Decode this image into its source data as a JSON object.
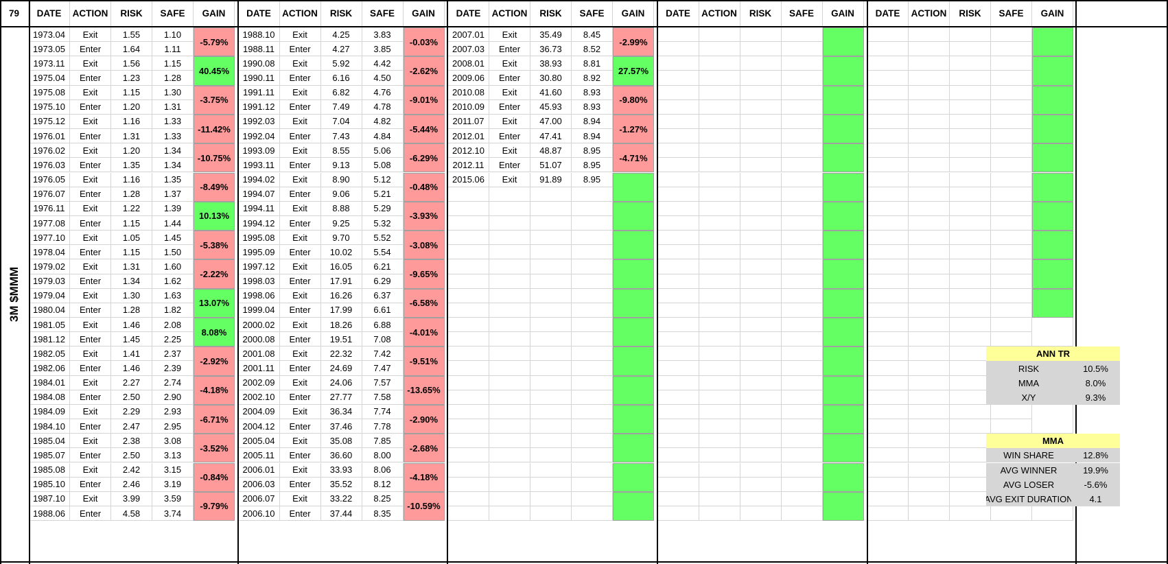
{
  "corner": "79",
  "side_label": "3M $MMM",
  "headers": [
    "DATE",
    "ACTION",
    "RISK",
    "SAFE",
    "GAIN"
  ],
  "blocks": [
    {
      "rows": [
        [
          "1973.04",
          "Exit",
          "1.55",
          "1.10"
        ],
        [
          "1973.05",
          "Enter",
          "1.64",
          "1.11"
        ],
        [
          "1973.11",
          "Exit",
          "1.56",
          "1.15"
        ],
        [
          "1975.04",
          "Enter",
          "1.23",
          "1.28"
        ],
        [
          "1975.08",
          "Exit",
          "1.15",
          "1.30"
        ],
        [
          "1975.10",
          "Enter",
          "1.20",
          "1.31"
        ],
        [
          "1975.12",
          "Exit",
          "1.16",
          "1.33"
        ],
        [
          "1976.01",
          "Enter",
          "1.31",
          "1.33"
        ],
        [
          "1976.02",
          "Exit",
          "1.20",
          "1.34"
        ],
        [
          "1976.03",
          "Enter",
          "1.35",
          "1.34"
        ],
        [
          "1976.05",
          "Exit",
          "1.16",
          "1.35"
        ],
        [
          "1976.07",
          "Enter",
          "1.28",
          "1.37"
        ],
        [
          "1976.11",
          "Exit",
          "1.22",
          "1.39"
        ],
        [
          "1977.08",
          "Enter",
          "1.15",
          "1.44"
        ],
        [
          "1977.10",
          "Exit",
          "1.05",
          "1.45"
        ],
        [
          "1978.04",
          "Enter",
          "1.15",
          "1.50"
        ],
        [
          "1979.02",
          "Exit",
          "1.31",
          "1.60"
        ],
        [
          "1979.03",
          "Enter",
          "1.34",
          "1.62"
        ],
        [
          "1979.04",
          "Exit",
          "1.30",
          "1.63"
        ],
        [
          "1980.04",
          "Enter",
          "1.28",
          "1.82"
        ],
        [
          "1981.05",
          "Exit",
          "1.46",
          "2.08"
        ],
        [
          "1981.12",
          "Enter",
          "1.45",
          "2.25"
        ],
        [
          "1982.05",
          "Exit",
          "1.41",
          "2.37"
        ],
        [
          "1982.06",
          "Enter",
          "1.46",
          "2.39"
        ],
        [
          "1984.01",
          "Exit",
          "2.27",
          "2.74"
        ],
        [
          "1984.08",
          "Enter",
          "2.50",
          "2.90"
        ],
        [
          "1984.09",
          "Exit",
          "2.29",
          "2.93"
        ],
        [
          "1984.10",
          "Enter",
          "2.47",
          "2.95"
        ],
        [
          "1985.04",
          "Exit",
          "2.38",
          "3.08"
        ],
        [
          "1985.07",
          "Enter",
          "2.50",
          "3.13"
        ],
        [
          "1985.08",
          "Exit",
          "2.42",
          "3.15"
        ],
        [
          "1985.10",
          "Enter",
          "2.46",
          "3.19"
        ],
        [
          "1987.10",
          "Exit",
          "3.99",
          "3.59"
        ],
        [
          "1988.06",
          "Enter",
          "4.58",
          "3.74"
        ]
      ],
      "gains": [
        {
          "text": "-5.79%",
          "tone": "neg"
        },
        {
          "text": "40.45%",
          "tone": "pos"
        },
        {
          "text": "-3.75%",
          "tone": "neg"
        },
        {
          "text": "-11.42%",
          "tone": "neg"
        },
        {
          "text": "-10.75%",
          "tone": "neg"
        },
        {
          "text": "-8.49%",
          "tone": "neg"
        },
        {
          "text": "10.13%",
          "tone": "pos"
        },
        {
          "text": "-5.38%",
          "tone": "neg"
        },
        {
          "text": "-2.22%",
          "tone": "neg"
        },
        {
          "text": "13.07%",
          "tone": "pos"
        },
        {
          "text": "8.08%",
          "tone": "pos"
        },
        {
          "text": "-2.92%",
          "tone": "neg"
        },
        {
          "text": "-4.18%",
          "tone": "neg"
        },
        {
          "text": "-6.71%",
          "tone": "neg"
        },
        {
          "text": "-3.52%",
          "tone": "neg"
        },
        {
          "text": "-0.84%",
          "tone": "neg"
        },
        {
          "text": "-9.79%",
          "tone": "neg"
        }
      ]
    },
    {
      "rows": [
        [
          "1988.10",
          "Exit",
          "4.25",
          "3.83"
        ],
        [
          "1988.11",
          "Enter",
          "4.27",
          "3.85"
        ],
        [
          "1990.08",
          "Exit",
          "5.92",
          "4.42"
        ],
        [
          "1990.11",
          "Enter",
          "6.16",
          "4.50"
        ],
        [
          "1991.11",
          "Exit",
          "6.82",
          "4.76"
        ],
        [
          "1991.12",
          "Enter",
          "7.49",
          "4.78"
        ],
        [
          "1992.03",
          "Exit",
          "7.04",
          "4.82"
        ],
        [
          "1992.04",
          "Enter",
          "7.43",
          "4.84"
        ],
        [
          "1993.09",
          "Exit",
          "8.55",
          "5.06"
        ],
        [
          "1993.11",
          "Enter",
          "9.13",
          "5.08"
        ],
        [
          "1994.02",
          "Exit",
          "8.90",
          "5.12"
        ],
        [
          "1994.07",
          "Enter",
          "9.06",
          "5.21"
        ],
        [
          "1994.11",
          "Exit",
          "8.88",
          "5.29"
        ],
        [
          "1994.12",
          "Enter",
          "9.25",
          "5.32"
        ],
        [
          "1995.08",
          "Exit",
          "9.70",
          "5.52"
        ],
        [
          "1995.09",
          "Enter",
          "10.02",
          "5.54"
        ],
        [
          "1997.12",
          "Exit",
          "16.05",
          "6.21"
        ],
        [
          "1998.03",
          "Enter",
          "17.91",
          "6.29"
        ],
        [
          "1998.06",
          "Exit",
          "16.26",
          "6.37"
        ],
        [
          "1999.04",
          "Enter",
          "17.99",
          "6.61"
        ],
        [
          "2000.02",
          "Exit",
          "18.26",
          "6.88"
        ],
        [
          "2000.08",
          "Enter",
          "19.51",
          "7.08"
        ],
        [
          "2001.08",
          "Exit",
          "22.32",
          "7.42"
        ],
        [
          "2001.11",
          "Enter",
          "24.69",
          "7.47"
        ],
        [
          "2002.09",
          "Exit",
          "24.06",
          "7.57"
        ],
        [
          "2002.10",
          "Enter",
          "27.77",
          "7.58"
        ],
        [
          "2004.09",
          "Exit",
          "36.34",
          "7.74"
        ],
        [
          "2004.12",
          "Enter",
          "37.46",
          "7.78"
        ],
        [
          "2005.04",
          "Exit",
          "35.08",
          "7.85"
        ],
        [
          "2005.11",
          "Enter",
          "36.60",
          "8.00"
        ],
        [
          "2006.01",
          "Exit",
          "33.93",
          "8.06"
        ],
        [
          "2006.03",
          "Enter",
          "35.52",
          "8.12"
        ],
        [
          "2006.07",
          "Exit",
          "33.22",
          "8.25"
        ],
        [
          "2006.10",
          "Enter",
          "37.44",
          "8.35"
        ]
      ],
      "gains": [
        {
          "text": "-0.03%",
          "tone": "neg"
        },
        {
          "text": "-2.62%",
          "tone": "neg"
        },
        {
          "text": "-9.01%",
          "tone": "neg"
        },
        {
          "text": "-5.44%",
          "tone": "neg"
        },
        {
          "text": "-6.29%",
          "tone": "neg"
        },
        {
          "text": "-0.48%",
          "tone": "neg"
        },
        {
          "text": "-3.93%",
          "tone": "neg"
        },
        {
          "text": "-3.08%",
          "tone": "neg"
        },
        {
          "text": "-9.65%",
          "tone": "neg"
        },
        {
          "text": "-6.58%",
          "tone": "neg"
        },
        {
          "text": "-4.01%",
          "tone": "neg"
        },
        {
          "text": "-9.51%",
          "tone": "neg"
        },
        {
          "text": "-13.65%",
          "tone": "neg"
        },
        {
          "text": "-2.90%",
          "tone": "neg"
        },
        {
          "text": "-2.68%",
          "tone": "neg"
        },
        {
          "text": "-4.18%",
          "tone": "neg"
        },
        {
          "text": "-10.59%",
          "tone": "neg"
        }
      ]
    },
    {
      "rows": [
        [
          "2007.01",
          "Exit",
          "35.49",
          "8.45"
        ],
        [
          "2007.03",
          "Enter",
          "36.73",
          "8.52"
        ],
        [
          "2008.01",
          "Exit",
          "38.93",
          "8.81"
        ],
        [
          "2009.06",
          "Enter",
          "30.80",
          "8.92"
        ],
        [
          "2010.08",
          "Exit",
          "41.60",
          "8.93"
        ],
        [
          "2010.09",
          "Enter",
          "45.93",
          "8.93"
        ],
        [
          "2011.07",
          "Exit",
          "47.00",
          "8.94"
        ],
        [
          "2012.01",
          "Enter",
          "47.41",
          "8.94"
        ],
        [
          "2012.10",
          "Exit",
          "48.87",
          "8.95"
        ],
        [
          "2012.11",
          "Enter",
          "51.07",
          "8.95"
        ],
        [
          "2015.06",
          "Exit",
          "91.89",
          "8.95"
        ]
      ],
      "gains": [
        {
          "text": "-2.99%",
          "tone": "neg"
        },
        {
          "text": "27.57%",
          "tone": "pos"
        },
        {
          "text": "-9.80%",
          "tone": "neg"
        },
        {
          "text": "-1.27%",
          "tone": "neg"
        },
        {
          "text": "-4.71%",
          "tone": "neg"
        },
        {
          "text": "",
          "tone": "pos"
        },
        {
          "text": "",
          "tone": "pos"
        },
        {
          "text": "",
          "tone": "pos"
        },
        {
          "text": "",
          "tone": "pos"
        },
        {
          "text": "",
          "tone": "pos"
        },
        {
          "text": "",
          "tone": "pos"
        },
        {
          "text": "",
          "tone": "pos"
        },
        {
          "text": "",
          "tone": "pos"
        },
        {
          "text": "",
          "tone": "pos"
        },
        {
          "text": "",
          "tone": "pos"
        },
        {
          "text": "",
          "tone": "pos"
        },
        {
          "text": "",
          "tone": "pos"
        }
      ]
    },
    {
      "rows": [],
      "gains": [
        {
          "text": "",
          "tone": "pos"
        },
        {
          "text": "",
          "tone": "pos"
        },
        {
          "text": "",
          "tone": "pos"
        },
        {
          "text": "",
          "tone": "pos"
        },
        {
          "text": "",
          "tone": "pos"
        },
        {
          "text": "",
          "tone": "pos"
        },
        {
          "text": "",
          "tone": "pos"
        },
        {
          "text": "",
          "tone": "pos"
        },
        {
          "text": "",
          "tone": "pos"
        },
        {
          "text": "",
          "tone": "pos"
        },
        {
          "text": "",
          "tone": "pos"
        },
        {
          "text": "",
          "tone": "pos"
        },
        {
          "text": "",
          "tone": "pos"
        },
        {
          "text": "",
          "tone": "pos"
        },
        {
          "text": "",
          "tone": "pos"
        },
        {
          "text": "",
          "tone": "pos"
        },
        {
          "text": "",
          "tone": "pos"
        }
      ]
    },
    {
      "rows": [],
      "gains": [
        {
          "text": "",
          "tone": "pos"
        },
        {
          "text": "",
          "tone": "pos"
        },
        {
          "text": "",
          "tone": "pos"
        },
        {
          "text": "",
          "tone": "pos"
        },
        {
          "text": "",
          "tone": "pos"
        },
        {
          "text": "",
          "tone": "pos"
        },
        {
          "text": "",
          "tone": "pos"
        },
        {
          "text": "",
          "tone": "pos"
        },
        {
          "text": "",
          "tone": "pos"
        },
        {
          "text": "",
          "tone": "pos"
        }
      ]
    }
  ],
  "stats": [
    {
      "title": "ANN TR",
      "items": [
        [
          "RISK",
          "10.5%"
        ],
        [
          "MMA",
          "8.0%"
        ],
        [
          "X/Y",
          "9.3%"
        ]
      ]
    },
    {
      "title": "MMA",
      "items": [
        [
          "WIN SHARE",
          "12.8%"
        ],
        [
          "AVG WINNER",
          "19.9%"
        ],
        [
          "AVG LOSER",
          "-5.6%"
        ],
        [
          "AVG EXIT DURATION",
          "4.1"
        ]
      ]
    }
  ],
  "colors": {
    "negative": "#ff9a9a",
    "positive": "#63ff63",
    "stat_header": "#ffff99",
    "stat_body": "#d6d6d6"
  }
}
